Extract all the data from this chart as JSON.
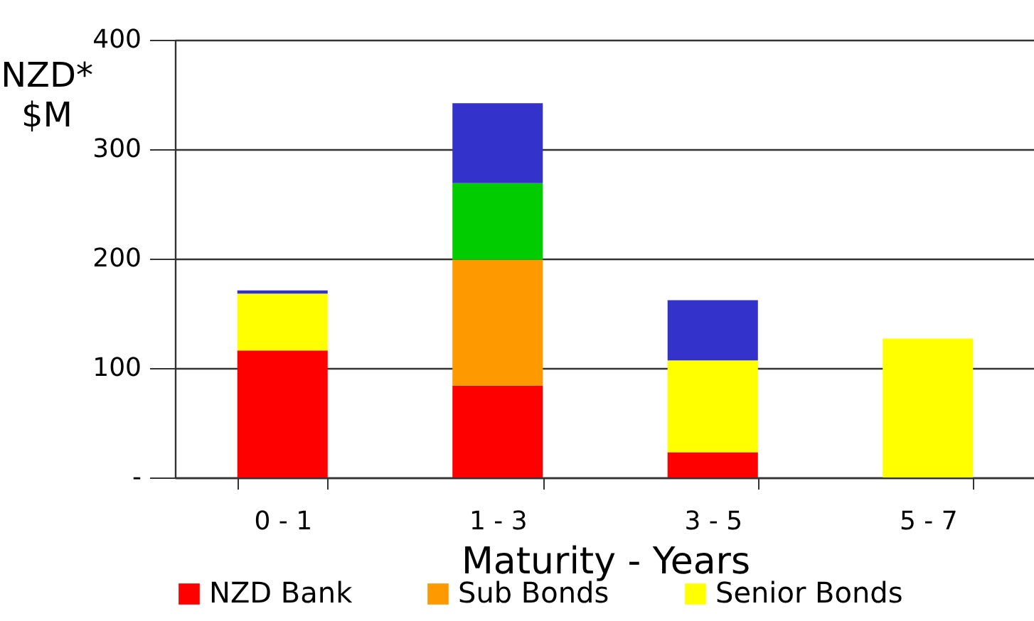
{
  "chart_data": {
    "type": "bar",
    "stacked": true,
    "xlabel": "Maturity - Years",
    "ylabel": "NZD* $M",
    "categories": [
      "0 - 1",
      "1 - 3",
      "3 - 5",
      "5 - 7"
    ],
    "series": [
      {
        "name": "NZD Bank",
        "color": "#ff0000",
        "values": [
          116,
          84,
          23,
          null
        ]
      },
      {
        "name": "Sub Bonds",
        "color": "#ff9900",
        "values": [
          null,
          115,
          null,
          null
        ]
      },
      {
        "name": "Senior Bonds",
        "color": "#ffff00",
        "values": [
          52,
          null,
          84,
          127
        ]
      },
      {
        "color": "#00cc00",
        "values": [
          null,
          70,
          null,
          null
        ]
      },
      {
        "color": "#3333cc",
        "values": [
          3,
          73,
          55,
          null
        ]
      }
    ],
    "ylim": [
      0,
      400
    ],
    "yticks": [
      {
        "value": 0,
        "label": "-"
      },
      100,
      200,
      300,
      400
    ],
    "grid": "y",
    "legend": "bottom"
  }
}
